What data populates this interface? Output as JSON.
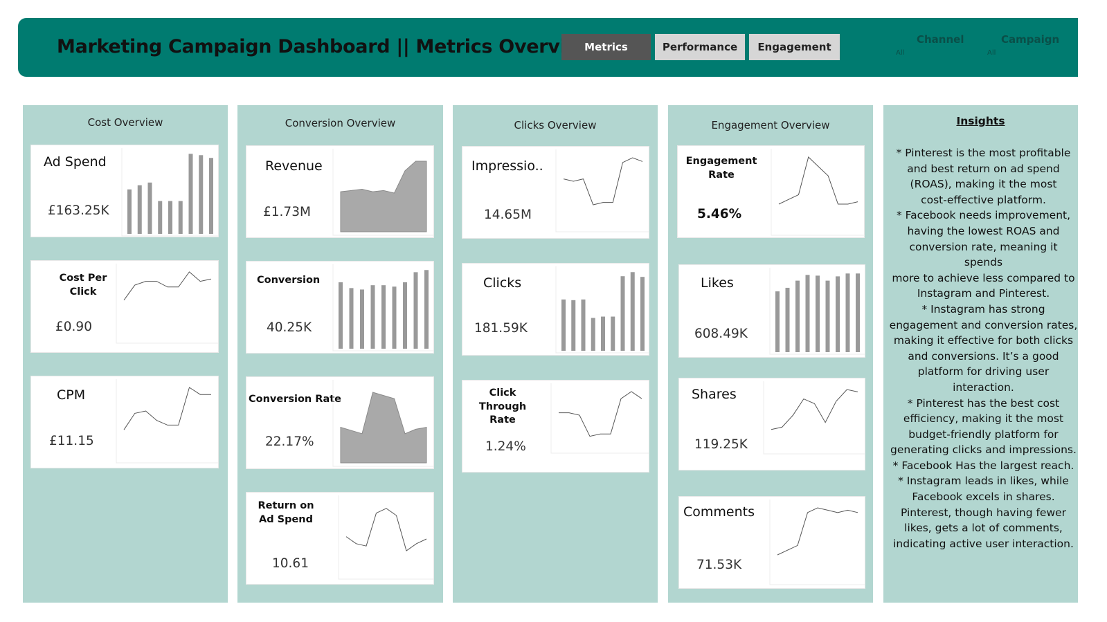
{
  "header": {
    "title": "Marketing Campaign Dashboard || Metrics Overview",
    "tabs": [
      {
        "label": "Metrics",
        "active": true
      },
      {
        "label": "Performance",
        "active": false
      },
      {
        "label": "Engagement",
        "active": false
      }
    ],
    "filters": [
      {
        "label": "Channel",
        "value": "All"
      },
      {
        "label": "Campaign",
        "value": "All"
      }
    ]
  },
  "colors": {
    "header": "#007b70",
    "panel": "#b2d6d0",
    "active_tab": "#555555",
    "inactive_tab": "#d6d6d6",
    "mark": "#999999"
  },
  "sections": {
    "cost": {
      "title": "Cost Overview",
      "cards": [
        {
          "label": "Ad Spend",
          "value": "£163.25K",
          "chart": "bar",
          "series": [
            65,
            71,
            75,
            48,
            48,
            48,
            117,
            115,
            111
          ]
        },
        {
          "label": "Cost Per Click",
          "value": "£0.90",
          "chart": "line",
          "series": [
            0.4,
            0.72,
            0.8,
            0.8,
            0.68,
            0.68,
            1.0,
            0.8,
            0.85
          ]
        },
        {
          "label": "CPM",
          "value": "£11.15",
          "chart": "line",
          "series": [
            0.1,
            0.45,
            0.5,
            0.3,
            0.2,
            0.2,
            1.0,
            0.85,
            0.85
          ]
        }
      ]
    },
    "conversion": {
      "title": "Conversion Overview",
      "cards": [
        {
          "label": "Revenue",
          "value": "£1.73M",
          "chart": "area",
          "series": [
            0.52,
            0.54,
            0.56,
            0.52,
            0.54,
            0.5,
            0.85,
            1.0,
            1.0
          ]
        },
        {
          "label": "Conversion",
          "value": "40.25K",
          "chart": "bar",
          "series": [
            92,
            84,
            82,
            88,
            88,
            86,
            92,
            106,
            109
          ]
        },
        {
          "label": "Conversion Rate",
          "value": "22.17%",
          "chart": "area",
          "series": [
            0.45,
            0.4,
            0.35,
            1.0,
            0.95,
            0.9,
            0.35,
            0.42,
            0.45
          ]
        },
        {
          "label": "Return on Ad Spend",
          "value": "10.61",
          "chart": "line",
          "series": [
            0.3,
            0.15,
            0.1,
            0.8,
            0.9,
            0.75,
            0.0,
            0.15,
            0.25
          ]
        }
      ]
    },
    "clicks": {
      "title": "Clicks Overview",
      "cards": [
        {
          "label": "Impressio..",
          "value": "14.65M",
          "chart": "line",
          "series": [
            0.55,
            0.5,
            0.55,
            0.0,
            0.05,
            0.05,
            0.9,
            1.0,
            0.92
          ]
        },
        {
          "label": "Clicks",
          "value": "181.59K",
          "chart": "bar",
          "series": [
            75,
            74,
            75,
            48,
            50,
            50,
            109,
            115,
            108
          ]
        },
        {
          "label": "Click Through Rate",
          "value": "1.24%",
          "chart": "line",
          "series": [
            0.55,
            0.55,
            0.5,
            0.05,
            0.1,
            0.1,
            0.85,
            1.0,
            0.85
          ]
        }
      ]
    },
    "engagement": {
      "title": "Engagement Overview",
      "cards": [
        {
          "label": "Engagement Rate",
          "value": "5.46%",
          "chart": "line",
          "series": [
            0.0,
            0.1,
            0.2,
            1.0,
            0.8,
            0.6,
            0.0,
            0.0,
            0.05
          ]
        },
        {
          "label": "Likes",
          "value": "608.49K",
          "chart": "bar",
          "series": [
            85,
            90,
            100,
            108,
            107,
            100,
            106,
            110,
            110
          ]
        },
        {
          "label": "Shares",
          "value": "119.25K",
          "chart": "line",
          "series": [
            0.15,
            0.2,
            0.45,
            0.8,
            0.7,
            0.3,
            0.75,
            1.0,
            0.95
          ]
        },
        {
          "label": "Comments",
          "value": "71.53K",
          "chart": "line",
          "series": [
            0.0,
            0.1,
            0.2,
            0.9,
            1.0,
            0.95,
            0.9,
            0.95,
            0.9
          ]
        }
      ]
    }
  },
  "insights": {
    "title": "Insights",
    "lines": [
      "* Pinterest is the most profitable",
      "and best return on ad spend",
      "(ROAS), making it the most",
      "cost-effective platform.",
      "* Facebook needs improvement,",
      "having the lowest ROAS and",
      "conversion rate, meaning it spends",
      "more to achieve less compared to",
      "Instagram and Pinterest.",
      "* Instagram has strong",
      "engagement and conversion rates,",
      "making it effective for both clicks",
      "and conversions. It’s a good",
      "platform for driving user",
      "interaction.",
      "* Pinterest has the best cost",
      "efficiency, making it the most",
      "budget-friendly platform for",
      "generating clicks and impressions.",
      "* Facebook Has the largest reach.",
      "* Instagram leads in likes, while",
      "Facebook excels in shares.",
      "Pinterest, though having fewer",
      "likes, gets a lot of comments,",
      "indicating active user interaction."
    ]
  }
}
